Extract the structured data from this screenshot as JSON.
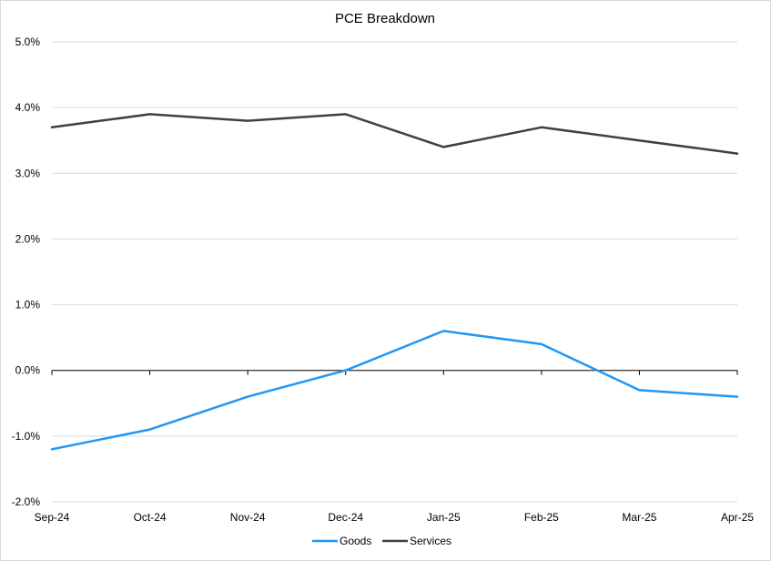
{
  "chart_data": {
    "type": "line",
    "title": "PCE Breakdown",
    "xlabel": "",
    "ylabel": "",
    "categories": [
      "Sep-24",
      "Oct-24",
      "Nov-24",
      "Dec-24",
      "Jan-25",
      "Feb-25",
      "Mar-25",
      "Apr-25"
    ],
    "y_ticks": [
      "5.0%",
      "4.0%",
      "3.0%",
      "2.0%",
      "1.0%",
      "0.0%",
      "-1.0%",
      "-2.0%"
    ],
    "ylim": [
      -2.0,
      5.0
    ],
    "y_unit": "%",
    "grid": true,
    "legend_position": "bottom",
    "series": [
      {
        "name": "Goods",
        "color": "#2196F3",
        "values": [
          -1.2,
          -0.9,
          -0.4,
          0.0,
          0.6,
          0.4,
          -0.3,
          -0.4
        ]
      },
      {
        "name": "Services",
        "color": "#404040",
        "values": [
          3.7,
          3.9,
          3.8,
          3.9,
          3.4,
          3.7,
          3.5,
          3.3
        ]
      }
    ]
  }
}
